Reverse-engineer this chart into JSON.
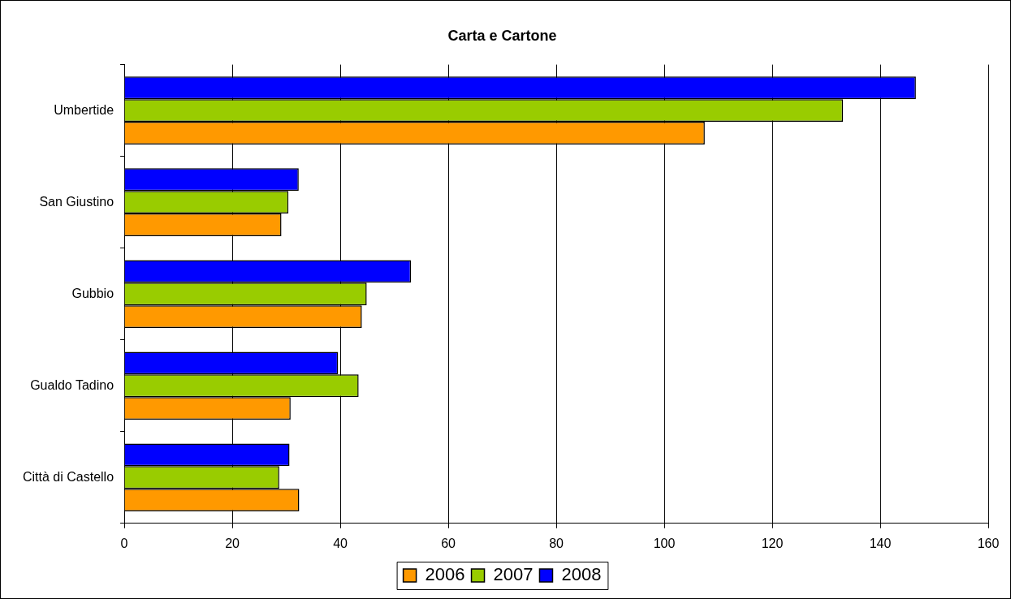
{
  "chart_data": {
    "type": "bar",
    "orientation": "horizontal",
    "title": "Carta e Cartone",
    "categories": [
      "Umbertide",
      "San Giustino",
      "Gubbio",
      "Gualdo Tadino",
      "Città di Castello"
    ],
    "series": [
      {
        "name": "2006",
        "color": "#ff9900",
        "values": [
          107.5,
          29.1,
          44.0,
          30.8,
          32.4
        ]
      },
      {
        "name": "2007",
        "color": "#99cc00",
        "values": [
          133.1,
          30.4,
          44.9,
          43.4,
          28.7
        ]
      },
      {
        "name": "2008",
        "color": "#0000ff",
        "values": [
          146.6,
          32.3,
          53.1,
          39.6,
          30.6
        ]
      }
    ],
    "xlim": [
      0,
      160
    ],
    "xticks": [
      0,
      20,
      40,
      60,
      80,
      100,
      120,
      140,
      160
    ],
    "grid": "x",
    "legend": "bottom"
  }
}
